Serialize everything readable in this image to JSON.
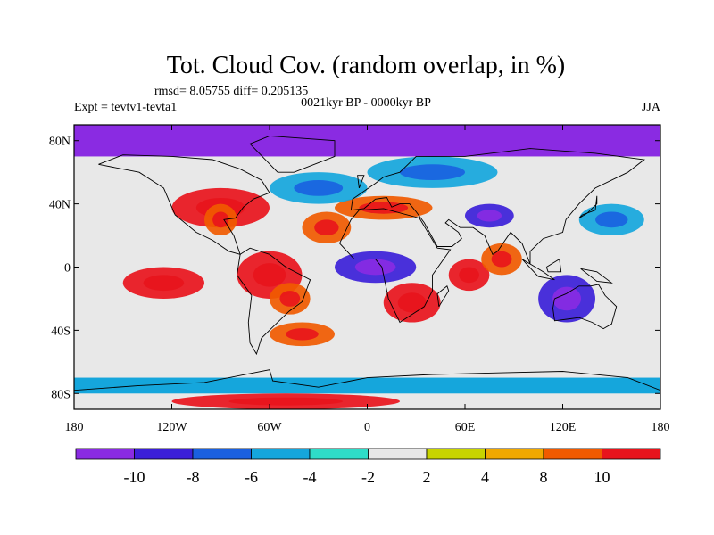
{
  "title": "Tot. Cloud Cov. (random overlap, in %)",
  "stats": "rmsd= 8.05755 diff= 0.205135",
  "expt": "Expt = tevtv1-tevta1",
  "period": "0021kyr BP - 0000kyr BP",
  "season": "JJA",
  "lat_ticks": [
    "80N",
    "40N",
    "0",
    "40S",
    "80S"
  ],
  "lat_values": [
    80,
    40,
    0,
    -40,
    -80
  ],
  "lon_ticks": [
    "180",
    "120W",
    "60W",
    "0",
    "60E",
    "120E",
    "180"
  ],
  "lon_values": [
    -180,
    -120,
    -60,
    0,
    60,
    120,
    180
  ],
  "colorbar": {
    "labels": [
      "-10",
      "-8",
      "-6",
      "-4",
      "-2",
      "2",
      "4",
      "8",
      "10"
    ],
    "colors": [
      "#8a2be2",
      "#3b1fd8",
      "#1a60e0",
      "#15a6dc",
      "#2fdcc8",
      "#e8e8e8",
      "#c8d400",
      "#f0a800",
      "#f05a00",
      "#e8141c"
    ]
  },
  "chart_data": {
    "type": "heatmap",
    "title": "Tot. Cloud Cov. (random overlap, in %)",
    "xlim": [
      -180,
      180
    ],
    "ylim": [
      -90,
      90
    ],
    "levels": [
      -10,
      -8,
      -6,
      -4,
      -2,
      2,
      4,
      8,
      10
    ],
    "regions": [
      {
        "lon": [
          -180,
          180
        ],
        "lat": [
          70,
          90
        ],
        "band": 0
      },
      {
        "lon": [
          -120,
          -60
        ],
        "lat": [
          25,
          50
        ],
        "band": 9
      },
      {
        "lon": [
          -100,
          -80
        ],
        "lat": [
          20,
          40
        ],
        "band": 8
      },
      {
        "lon": [
          -80,
          -40
        ],
        "lat": [
          -20,
          10
        ],
        "band": 9
      },
      {
        "lon": [
          -60,
          -35
        ],
        "lat": [
          -30,
          -10
        ],
        "band": 8
      },
      {
        "lon": [
          -40,
          -10
        ],
        "lat": [
          15,
          35
        ],
        "band": 8
      },
      {
        "lon": [
          -20,
          40
        ],
        "lat": [
          30,
          45
        ],
        "band": 8
      },
      {
        "lon": [
          10,
          45
        ],
        "lat": [
          -35,
          -10
        ],
        "band": 9
      },
      {
        "lon": [
          50,
          75
        ],
        "lat": [
          -15,
          5
        ],
        "band": 9
      },
      {
        "lon": [
          70,
          95
        ],
        "lat": [
          -5,
          15
        ],
        "band": 8
      },
      {
        "lon": [
          105,
          140
        ],
        "lat": [
          -35,
          -5
        ],
        "band": 1
      },
      {
        "lon": [
          60,
          90
        ],
        "lat": [
          25,
          40
        ],
        "band": 1
      },
      {
        "lon": [
          -150,
          -100
        ],
        "lat": [
          -20,
          0
        ],
        "band": 9
      },
      {
        "lon": [
          -60,
          -20
        ],
        "lat": [
          -50,
          -35
        ],
        "band": 8
      },
      {
        "lon": [
          130,
          170
        ],
        "lat": [
          20,
          40
        ],
        "band": 3
      },
      {
        "lon": [
          -180,
          180
        ],
        "lat": [
          -80,
          -70
        ],
        "band": 3
      },
      {
        "lon": [
          -120,
          20
        ],
        "lat": [
          -90,
          -80
        ],
        "band": 9
      },
      {
        "lon": [
          -60,
          0
        ],
        "lat": [
          40,
          60
        ],
        "band": 3
      },
      {
        "lon": [
          0,
          80
        ],
        "lat": [
          50,
          70
        ],
        "band": 3
      },
      {
        "lon": [
          -20,
          30
        ],
        "lat": [
          -10,
          10
        ],
        "band": 1
      }
    ]
  }
}
